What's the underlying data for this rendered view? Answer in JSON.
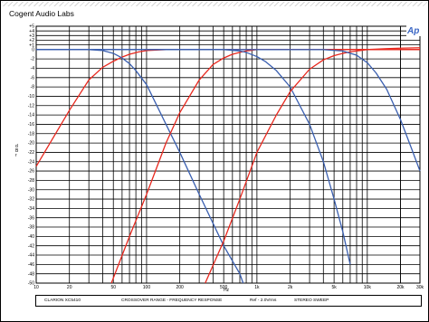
{
  "header": {
    "brand": "Cogent Audio Labs"
  },
  "logo": {
    "text": "Ap"
  },
  "footer": {
    "model": "CLARION XC5410",
    "title": "CROSSOVER RANGE - FREQUENCY RESPONSE",
    "ref": "Ref - 2.0Vrms",
    "sweep": "STEREO SWEEP"
  },
  "colors": {
    "red_series": "#e8281e",
    "blue_series": "#3a5fb0",
    "logo": "#3a66c4"
  },
  "chart_data": {
    "type": "line",
    "xlabel": "Hz",
    "ylabel": "d B r",
    "xscale": "log",
    "xlim": [
      10,
      30000
    ],
    "ylim": [
      -50,
      5
    ],
    "grid": true,
    "x_ticks": [
      {
        "v": 10,
        "label": "10"
      },
      {
        "v": 20,
        "label": "20"
      },
      {
        "v": 50,
        "label": "50"
      },
      {
        "v": 100,
        "label": "100"
      },
      {
        "v": 200,
        "label": "200"
      },
      {
        "v": 500,
        "label": "500"
      },
      {
        "v": 1000,
        "label": "1k"
      },
      {
        "v": 2000,
        "label": "2k"
      },
      {
        "v": 5000,
        "label": "5k"
      },
      {
        "v": 10000,
        "label": "10k"
      },
      {
        "v": 20000,
        "label": "20k"
      },
      {
        "v": 30000,
        "label": "30k"
      }
    ],
    "y_tick_labels": [
      "+5",
      "+4",
      "+3",
      "+2",
      "+1",
      "0",
      "-2",
      "-4",
      "-6",
      "-8",
      "-10",
      "-12",
      "-14",
      "-16",
      "-18",
      "-20",
      "-22",
      "-24",
      "-26",
      "-28",
      "-30",
      "-32",
      "-34",
      "-36",
      "-38",
      "-40",
      "-42",
      "-44",
      "-46",
      "-48",
      "-50"
    ],
    "series": [
      {
        "color": "#e8281e",
        "x": [
          10,
          20,
          30,
          40,
          50,
          60,
          70,
          85,
          100,
          150,
          300,
          1000,
          30000
        ],
        "y": [
          -25,
          -13,
          -6.5,
          -3.8,
          -2.5,
          -1.6,
          -1.0,
          -0.5,
          -0.2,
          0,
          0,
          0,
          0
        ]
      },
      {
        "color": "#3a5fb0",
        "x": [
          10,
          20,
          30,
          40,
          50,
          60,
          70,
          80,
          100,
          150,
          200,
          300,
          500,
          700,
          750
        ],
        "y": [
          0,
          0,
          0,
          -0.2,
          -0.8,
          -1.8,
          -3.0,
          -4.5,
          -7.5,
          -16,
          -22,
          -31,
          -42,
          -48,
          -50
        ]
      },
      {
        "color": "#e8281e",
        "x": [
          48,
          70,
          100,
          150,
          200,
          300,
          400,
          500,
          600,
          700,
          800,
          1000,
          1500,
          3000,
          30000
        ],
        "y": [
          -50,
          -40,
          -31,
          -20,
          -13.5,
          -6.5,
          -3.2,
          -1.8,
          -1.0,
          -0.6,
          -0.3,
          0,
          0,
          0,
          0
        ]
      },
      {
        "color": "#3a5fb0",
        "x": [
          10,
          500,
          700,
          800,
          1000,
          1200,
          1500,
          2000,
          3000,
          4000,
          5000,
          6000,
          7000
        ],
        "y": [
          0,
          0,
          -0.3,
          -0.6,
          -1.5,
          -2.6,
          -4.5,
          -8.0,
          -16,
          -24,
          -32,
          -39,
          -46
        ]
      },
      {
        "color": "#e8281e",
        "x": [
          340,
          500,
          700,
          1000,
          1500,
          2000,
          3000,
          4000,
          5000,
          6000,
          7000,
          8000,
          10000,
          15000,
          20000,
          30000
        ],
        "y": [
          -50,
          -41,
          -32,
          -22,
          -14,
          -9.0,
          -4.2,
          -2.2,
          -1.3,
          -0.8,
          -0.5,
          -0.3,
          0,
          0.2,
          0.3,
          0.4
        ]
      },
      {
        "color": "#3a5fb0",
        "x": [
          10,
          4000,
          6000,
          8000,
          10000,
          12000,
          15000,
          20000,
          25000,
          30000
        ],
        "y": [
          0,
          0,
          -0.3,
          -1.2,
          -2.8,
          -5.0,
          -8.5,
          -15,
          -21,
          -26
        ]
      }
    ]
  }
}
